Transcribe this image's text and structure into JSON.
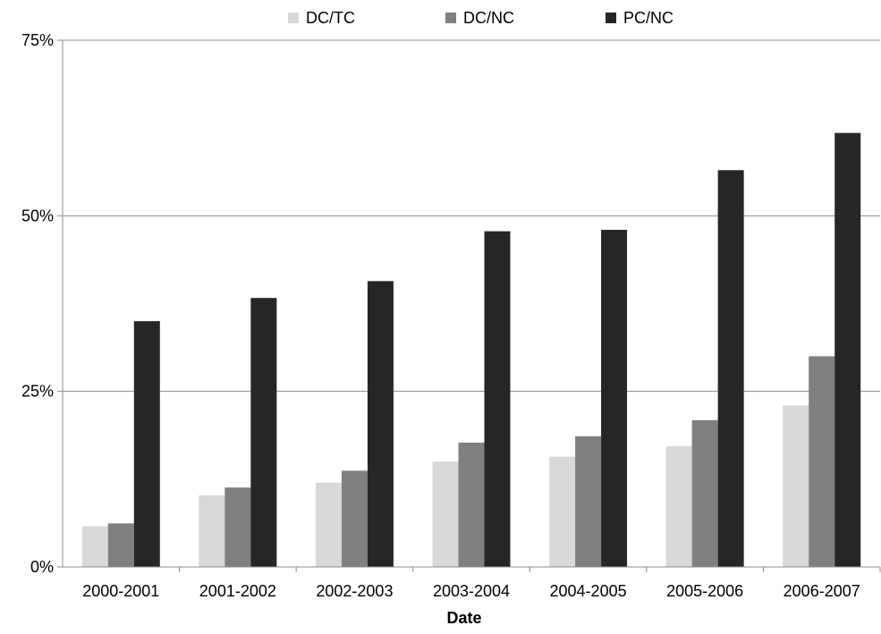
{
  "chart_data": {
    "type": "bar",
    "title": "",
    "xlabel": "Date",
    "ylabel": "",
    "categories": [
      "2000-2001",
      "2001-2002",
      "2002-2003",
      "2003-2004",
      "2004-2005",
      "2005-2006",
      "2006-2007"
    ],
    "series": [
      {
        "name": "DC/TC",
        "color": "#d9d9d9",
        "values": [
          5.8,
          10.2,
          12.0,
          15.0,
          15.7,
          17.2,
          23.0
        ]
      },
      {
        "name": "DC/NC",
        "color": "#808080",
        "values": [
          6.2,
          11.3,
          13.7,
          17.7,
          18.6,
          20.9,
          30.0
        ]
      },
      {
        "name": "PC/NC",
        "color": "#262626",
        "values": [
          35.0,
          38.3,
          40.7,
          47.8,
          48.0,
          56.5,
          61.8
        ]
      }
    ],
    "ylim": [
      0,
      75
    ],
    "yticks": [
      0,
      25,
      50,
      75
    ],
    "ytick_labels": [
      "0%",
      "25%",
      "50%",
      "75%"
    ],
    "grid": true,
    "legend_position": "top-center"
  }
}
